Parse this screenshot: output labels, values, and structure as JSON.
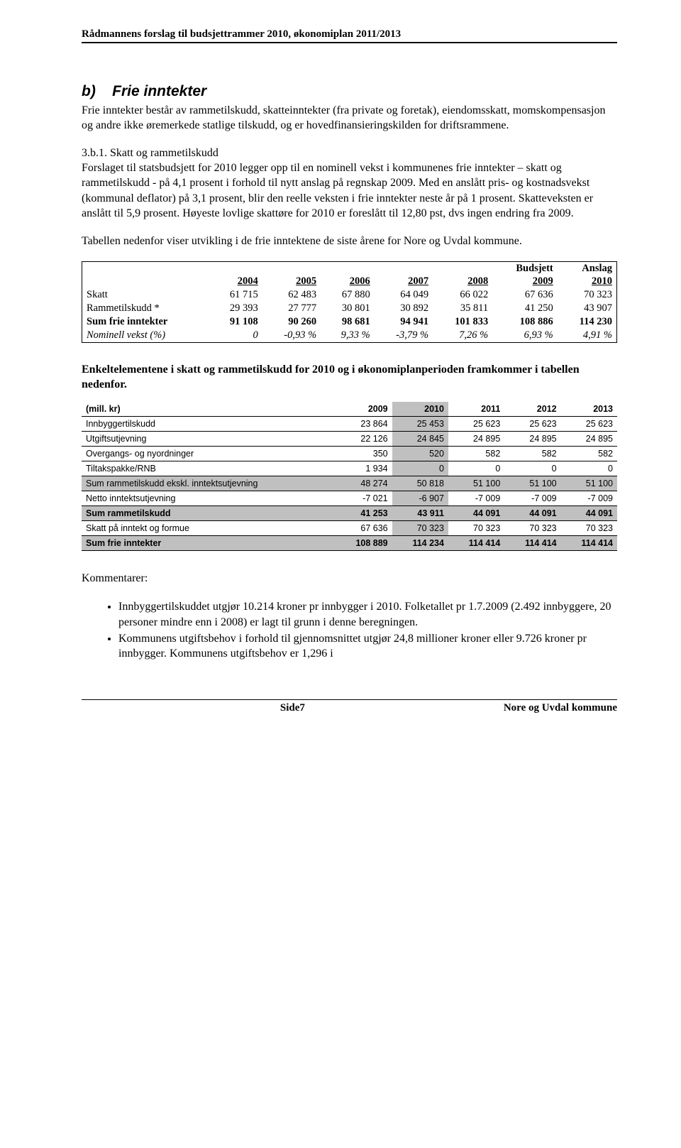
{
  "header": "Rådmannens forslag til budsjettrammer 2010, økonomiplan 2011/2013",
  "section_b": {
    "label": "b)",
    "title": "Frie inntekter"
  },
  "para1": "Frie inntekter består av rammetilskudd, skatteinntekter (fra private og foretak), eiendomsskatt, momskompensasjon og andre ikke øremerkede statlige tilskudd, og er hovedfinansieringskilden for driftsrammene.",
  "sub1": "3.b.1. Skatt og rammetilskudd",
  "para2": "Forslaget til statsbudsjett for 2010 legger opp til en nominell vekst i kommunenes frie inntekter – skatt og rammetilskudd - på 4,1 prosent i forhold til nytt anslag på regnskap 2009. Med en anslått pris- og kostnadsvekst (kommunal deflator) på 3,1 prosent, blir den reelle veksten i frie inntekter neste år på 1 prosent. Skatteveksten er anslått til 5,9 prosent. Høyeste lovlige skattøre for 2010 er foreslått til 12,80 pst, dvs ingen endring fra 2009.",
  "para3": "Tabellen nedenfor viser utvikling i de frie inntektene de siste årene for Nore og Uvdal kommune.",
  "income_table": {
    "top_headers": [
      "",
      "",
      "",
      "",
      "",
      "",
      "Budsjett",
      "Anslag"
    ],
    "year_headers": [
      "",
      "2004",
      "2005",
      "2006",
      "2007",
      "2008",
      "2009",
      "2010"
    ],
    "rows": [
      {
        "label": "Skatt",
        "cells": [
          "61 715",
          "62 483",
          "67 880",
          "64 049",
          "66 022",
          "67 636",
          "70 323"
        ]
      },
      {
        "label": "Rammetilskudd *",
        "cells": [
          "29 393",
          "27 777",
          "30 801",
          "30 892",
          "35 811",
          "41 250",
          "43 907"
        ]
      },
      {
        "label": "Sum frie inntekter",
        "cells": [
          "91 108",
          "90 260",
          "98 681",
          "94 941",
          "101 833",
          "108 886",
          "114 230"
        ],
        "bold": true
      },
      {
        "label": "Nominell vekst (%)",
        "cells": [
          "0",
          "-0,93 %",
          "9,33 %",
          "-3,79 %",
          "7,26 %",
          "6,93 %",
          "4,91 %"
        ],
        "italic": true
      }
    ]
  },
  "bold_para": "Enkeltelementene i skatt og rammetilskudd for 2010 og i økonomiplanperioden framkommer i tabellen nedenfor.",
  "elements_table": {
    "headers": [
      "(mill. kr)",
      "2009",
      "2010",
      "2011",
      "2012",
      "2013"
    ],
    "shade_col": 2,
    "rows": [
      {
        "label": "Innbyggertilskudd",
        "cells": [
          "23 864",
          "25 453",
          "25 623",
          "25 623",
          "25 623"
        ]
      },
      {
        "label": "Utgiftsutjevning",
        "cells": [
          "22 126",
          "24 845",
          "24 895",
          "24 895",
          "24 895"
        ]
      },
      {
        "label": "Overgangs- og nyordninger",
        "cells": [
          "350",
          "520",
          "582",
          "582",
          "582"
        ]
      },
      {
        "label": "Tiltakspakke/RNB",
        "cells": [
          "1 934",
          "0",
          "0",
          "0",
          "0"
        ]
      },
      {
        "label": "Sum rammetilskudd ekskl. inntektsutjevning",
        "cells": [
          "48 274",
          "50 818",
          "51 100",
          "51 100",
          "51 100"
        ],
        "shade_row": true
      },
      {
        "label": "Netto inntektsutjevning",
        "cells": [
          "-7 021",
          "-6 907",
          "-7 009",
          "-7 009",
          "-7 009"
        ]
      },
      {
        "label": "Sum rammetilskudd",
        "cells": [
          "41 253",
          "43 911",
          "44 091",
          "44 091",
          "44 091"
        ],
        "bold": true,
        "shade_row": true
      },
      {
        "label": "Skatt på inntekt og formue",
        "cells": [
          "67 636",
          "70 323",
          "70 323",
          "70 323",
          "70 323"
        ]
      },
      {
        "label": "Sum frie inntekter",
        "cells": [
          "108 889",
          "114 234",
          "114 414",
          "114 414",
          "114 414"
        ],
        "bold": true,
        "shade_row": true
      }
    ]
  },
  "comments_head": "Kommentarer:",
  "bullets": [
    "Innbyggertilskuddet utgjør 10.214 kroner pr innbygger i 2010. Folketallet pr 1.7.2009 (2.492 innbyggere, 20 personer mindre enn i 2008) er lagt til grunn i denne beregningen.",
    "Kommunens utgiftsbehov i forhold til gjennomsnittet utgjør 24,8 millioner kroner eller 9.726 kroner pr innbygger. Kommunens utgiftsbehov er 1,296 i"
  ],
  "footer": {
    "left": "",
    "center": "Side7",
    "right": "Nore og Uvdal kommune"
  }
}
